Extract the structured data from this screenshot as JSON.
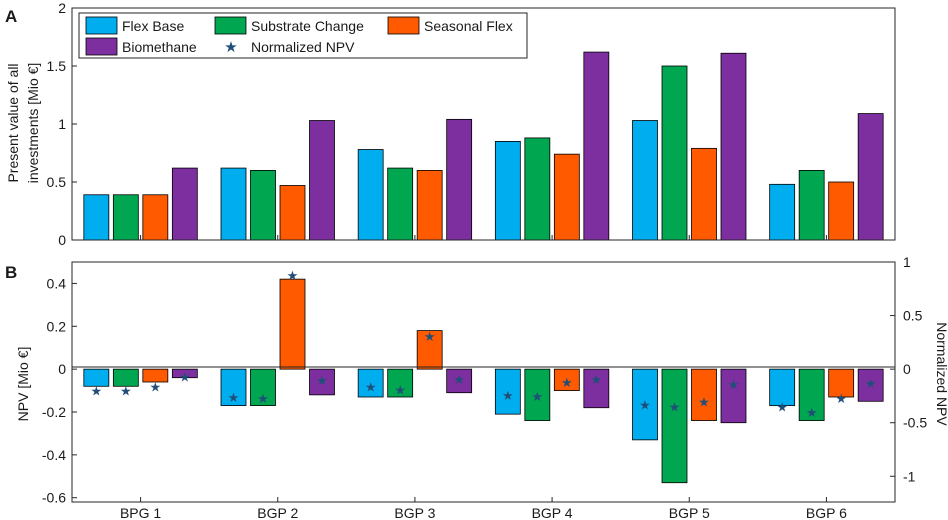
{
  "chart_data": [
    {
      "panel_label": "A",
      "type": "bar",
      "categories": [
        "BPG 1",
        "BGP 2",
        "BGP 3",
        "BGP 4",
        "BGP 5",
        "BGP 6"
      ],
      "series": [
        {
          "name": "Flex Base",
          "color": "#00aeef",
          "values": [
            0.39,
            0.62,
            0.78,
            0.85,
            1.03,
            0.48
          ]
        },
        {
          "name": "Substrate Change",
          "color": "#00a650",
          "values": [
            0.39,
            0.6,
            0.62,
            0.88,
            1.5,
            0.6
          ]
        },
        {
          "name": "Seasonal Flex",
          "color": "#ff5a00",
          "values": [
            0.39,
            0.47,
            0.6,
            0.74,
            0.79,
            0.5
          ]
        },
        {
          "name": "Biomethane",
          "color": "#7d2fa0",
          "values": [
            0.62,
            1.03,
            1.04,
            1.62,
            1.61,
            1.09
          ]
        }
      ],
      "ylabel_line1": "Present value of all",
      "ylabel_line2": "investments [Mio €]",
      "ylim": [
        0,
        2
      ],
      "yticks": [
        0,
        0.5,
        1,
        1.5,
        2
      ],
      "ytick_labels": [
        "0",
        "0.5",
        "1",
        "1.5",
        "2"
      ],
      "legend_position": "top-left",
      "legend_extra": "Normalized NPV"
    },
    {
      "panel_label": "B",
      "type": "bar",
      "categories": [
        "BPG 1",
        "BGP 2",
        "BGP 3",
        "BGP 4",
        "BGP 5",
        "BGP 6"
      ],
      "series": [
        {
          "name": "Flex Base",
          "color": "#00aeef",
          "values": [
            -0.08,
            -0.17,
            -0.13,
            -0.21,
            -0.33,
            -0.17
          ]
        },
        {
          "name": "Substrate Change",
          "color": "#00a650",
          "values": [
            -0.08,
            -0.17,
            -0.13,
            -0.24,
            -0.53,
            -0.24
          ]
        },
        {
          "name": "Seasonal Flex",
          "color": "#ff5a00",
          "values": [
            -0.06,
            0.42,
            0.18,
            -0.1,
            -0.24,
            -0.13
          ]
        },
        {
          "name": "Biomethane",
          "color": "#7d2fa0",
          "values": [
            -0.04,
            -0.12,
            -0.11,
            -0.18,
            -0.25,
            -0.15
          ]
        }
      ],
      "normalized_npv": [
        [
          -0.2,
          -0.2,
          -0.16,
          -0.07
        ],
        [
          -0.26,
          -0.27,
          0.88,
          -0.1
        ],
        [
          -0.16,
          -0.19,
          0.31,
          -0.09
        ],
        [
          -0.24,
          -0.25,
          -0.12,
          -0.09
        ],
        [
          -0.33,
          -0.35,
          -0.3,
          -0.14
        ],
        [
          -0.35,
          -0.4,
          -0.27,
          -0.13
        ]
      ],
      "ylabel": "NPV [Mio €]",
      "ylim": [
        -0.62,
        0.5
      ],
      "yticks": [
        -0.6,
        -0.4,
        -0.2,
        0,
        0.2,
        0.4
      ],
      "ytick_labels": [
        "-0.6",
        "-0.4",
        "-0.2",
        "0",
        "0.2",
        "0.4"
      ],
      "ylabel_right": "Normalized NPV",
      "ylim_right": [
        -1.24,
        1.0
      ],
      "yticks_right": [
        -1,
        -0.5,
        0,
        0.5,
        1
      ],
      "ytick_labels_right": [
        "-1",
        "-0.5",
        "0",
        "0.5",
        "1"
      ],
      "marker_color": "#1f4e79"
    }
  ]
}
